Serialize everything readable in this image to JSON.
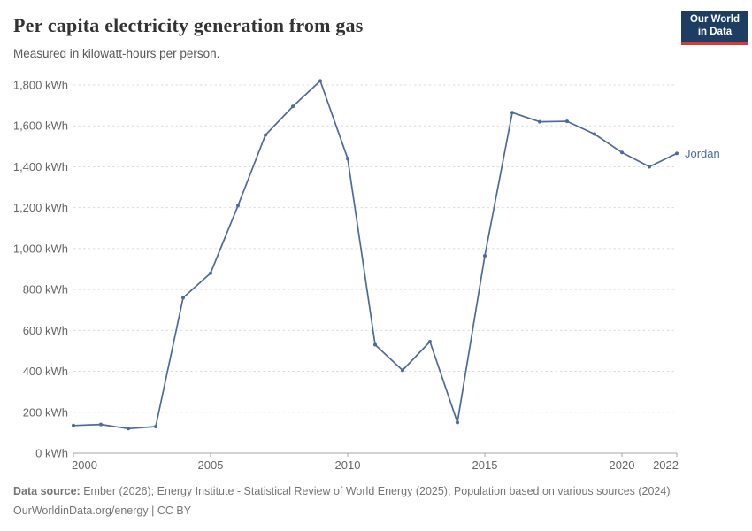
{
  "header": {
    "title": "Per capita electricity generation from gas",
    "subtitle": "Measured in kilowatt-hours per person."
  },
  "logo": {
    "line1": "Our World",
    "line2": "in Data"
  },
  "footer": {
    "datasource_label": "Data source:",
    "datasource_text": " Ember (2026); Energy Institute - Statistical Review of World Energy (2025); Population based on various sources (2024)",
    "url": "OurWorldinData.org/energy",
    "separator": " | ",
    "license": "CC BY"
  },
  "colors": {
    "line": "#4c6a9c",
    "grid": "#dcdcdc",
    "axis": "#a5a5a5",
    "tick_text": "#666666",
    "logo_navy": "#1d3d63",
    "logo_red": "#d73a34"
  },
  "chart_data": {
    "type": "line",
    "title": "Per capita electricity generation from gas",
    "subtitle": "Measured in kilowatt-hours per person.",
    "unit": "kWh",
    "x": [
      2000,
      2001,
      2002,
      2003,
      2004,
      2005,
      2006,
      2007,
      2008,
      2009,
      2010,
      2011,
      2012,
      2013,
      2014,
      2015,
      2016,
      2017,
      2018,
      2019,
      2020,
      2021,
      2022
    ],
    "series": [
      {
        "name": "Jordan",
        "values": [
          135,
          140,
          120,
          130,
          760,
          880,
          1210,
          1555,
          1695,
          1820,
          1440,
          530,
          405,
          545,
          150,
          965,
          1665,
          1620,
          1622,
          1560,
          1470,
          1400,
          1465
        ]
      }
    ],
    "xticks": [
      2000,
      2005,
      2010,
      2015,
      2020,
      2022
    ],
    "yticks": [
      0,
      200,
      400,
      600,
      800,
      1000,
      1200,
      1400,
      1600,
      1800
    ],
    "xlim": [
      2000,
      2022
    ],
    "ylim": [
      0,
      1800
    ],
    "grid": "horizontal-dashed",
    "legend": "entity-label-right-of-line"
  }
}
